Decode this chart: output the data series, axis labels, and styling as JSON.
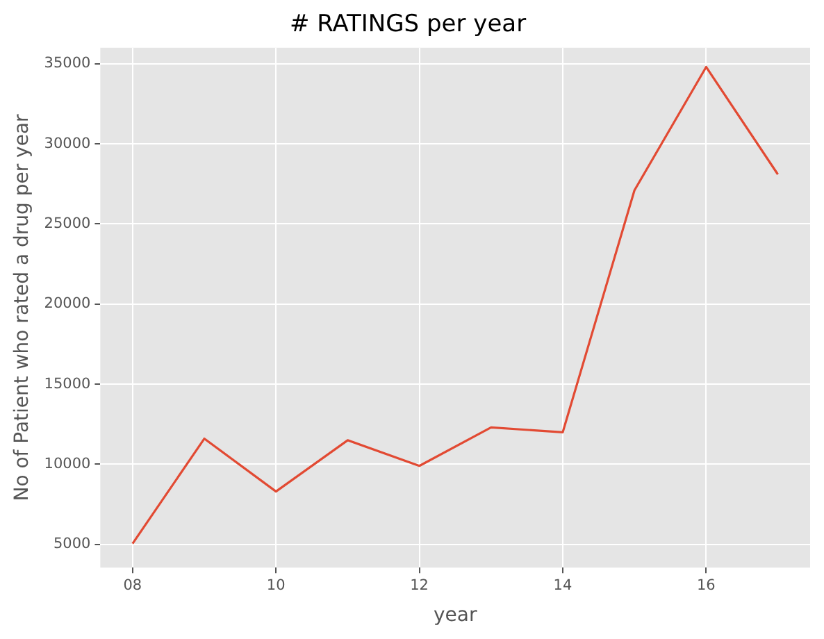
{
  "chart_data": {
    "type": "line",
    "title": "# RATINGS per year",
    "xlabel": "year",
    "ylabel": "No of Patient who rated a drug per year",
    "x": [
      8,
      9,
      10,
      11,
      12,
      13,
      14,
      15,
      16,
      17
    ],
    "series": [
      {
        "color": "#e24a33",
        "values": [
          5050,
          11600,
          8300,
          11500,
          9900,
          12300,
          12000,
          27100,
          34800,
          28100
        ]
      }
    ],
    "xlim": [
      7.55,
      17.45
    ],
    "xticks": [
      {
        "value": 8,
        "label": "08"
      },
      {
        "value": 10,
        "label": "10"
      },
      {
        "value": 12,
        "label": "12"
      },
      {
        "value": 14,
        "label": "14"
      },
      {
        "value": 16,
        "label": "16"
      }
    ],
    "ylim": [
      3550,
      36000
    ],
    "yticks": [
      5000,
      10000,
      15000,
      20000,
      25000,
      30000,
      35000
    ],
    "grid": true,
    "legend": false,
    "marker": "none",
    "line_style": "solid"
  }
}
